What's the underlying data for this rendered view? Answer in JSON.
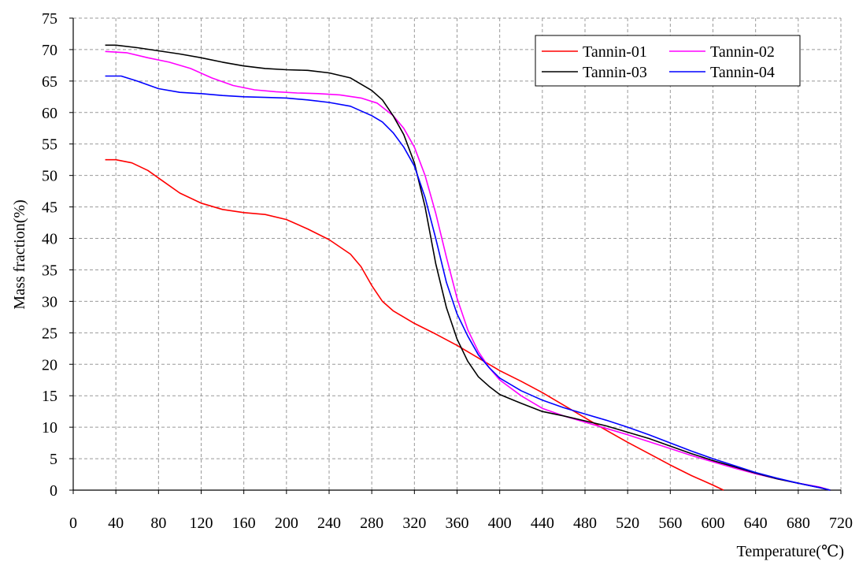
{
  "chart_data": {
    "type": "line",
    "title": "",
    "xlabel": "Temperature(℃)",
    "ylabel": "Mass fraction(%)",
    "xlim": [
      0,
      720
    ],
    "ylim": [
      0,
      75
    ],
    "xticks": [
      "0",
      "40",
      "80",
      "120",
      "160",
      "200",
      "240",
      "280",
      "320",
      "360",
      "400",
      "440",
      "480",
      "520",
      "560",
      "600",
      "640",
      "680",
      "720"
    ],
    "yticks": [
      "0",
      "5",
      "10",
      "15",
      "20",
      "25",
      "30",
      "35",
      "40",
      "45",
      "50",
      "55",
      "60",
      "65",
      "70",
      "75"
    ],
    "grid": true,
    "grid_style": "dashed",
    "legend_position": "top-right",
    "series": [
      {
        "name": "Tannin-01",
        "color": "#ff0000",
        "points": [
          [
            30,
            52.5
          ],
          [
            40,
            52.5
          ],
          [
            55,
            52
          ],
          [
            70,
            50.8
          ],
          [
            85,
            49
          ],
          [
            100,
            47.2
          ],
          [
            120,
            45.6
          ],
          [
            140,
            44.6
          ],
          [
            160,
            44.1
          ],
          [
            180,
            43.8
          ],
          [
            200,
            43
          ],
          [
            220,
            41.5
          ],
          [
            240,
            39.8
          ],
          [
            260,
            37.5
          ],
          [
            270,
            35.5
          ],
          [
            280,
            32.5
          ],
          [
            290,
            30
          ],
          [
            300,
            28.5
          ],
          [
            320,
            26.5
          ],
          [
            340,
            24.8
          ],
          [
            360,
            23
          ],
          [
            380,
            21
          ],
          [
            400,
            19
          ],
          [
            420,
            17.3
          ],
          [
            440,
            15.5
          ],
          [
            460,
            13.5
          ],
          [
            480,
            11.5
          ],
          [
            500,
            9.5
          ],
          [
            520,
            7.6
          ],
          [
            540,
            5.8
          ],
          [
            560,
            4
          ],
          [
            580,
            2.3
          ],
          [
            600,
            0.8
          ],
          [
            610,
            0
          ]
        ]
      },
      {
        "name": "Tannin-02",
        "color": "#ff00ff",
        "points": [
          [
            30,
            69.7
          ],
          [
            50,
            69.5
          ],
          [
            70,
            68.7
          ],
          [
            90,
            68
          ],
          [
            110,
            67
          ],
          [
            130,
            65.5
          ],
          [
            150,
            64.3
          ],
          [
            170,
            63.6
          ],
          [
            190,
            63.3
          ],
          [
            210,
            63.1
          ],
          [
            230,
            63
          ],
          [
            250,
            62.8
          ],
          [
            270,
            62.3
          ],
          [
            285,
            61.5
          ],
          [
            300,
            59.5
          ],
          [
            310,
            57.5
          ],
          [
            320,
            54.5
          ],
          [
            330,
            50
          ],
          [
            340,
            44
          ],
          [
            350,
            37
          ],
          [
            360,
            30.5
          ],
          [
            370,
            25.5
          ],
          [
            380,
            22
          ],
          [
            390,
            19.5
          ],
          [
            400,
            17.5
          ],
          [
            420,
            15
          ],
          [
            440,
            13
          ],
          [
            460,
            11.8
          ],
          [
            480,
            10.8
          ],
          [
            500,
            9.8
          ],
          [
            520,
            8.8
          ],
          [
            540,
            7.7
          ],
          [
            560,
            6.6
          ],
          [
            580,
            5.5
          ],
          [
            600,
            4.5
          ],
          [
            620,
            3.5
          ],
          [
            640,
            2.6
          ],
          [
            660,
            1.8
          ],
          [
            680,
            1.1
          ],
          [
            700,
            0.5
          ],
          [
            710,
            0
          ]
        ]
      },
      {
        "name": "Tannin-03",
        "color": "#000000",
        "points": [
          [
            30,
            70.7
          ],
          [
            40,
            70.7
          ],
          [
            60,
            70.3
          ],
          [
            80,
            69.8
          ],
          [
            100,
            69.3
          ],
          [
            120,
            68.7
          ],
          [
            140,
            68
          ],
          [
            160,
            67.4
          ],
          [
            180,
            67
          ],
          [
            200,
            66.8
          ],
          [
            220,
            66.7
          ],
          [
            240,
            66.3
          ],
          [
            260,
            65.5
          ],
          [
            280,
            63.5
          ],
          [
            290,
            62
          ],
          [
            300,
            59.5
          ],
          [
            310,
            56.5
          ],
          [
            320,
            52
          ],
          [
            330,
            45
          ],
          [
            340,
            36
          ],
          [
            350,
            29
          ],
          [
            360,
            24
          ],
          [
            370,
            20.5
          ],
          [
            380,
            18
          ],
          [
            390,
            16.5
          ],
          [
            400,
            15.2
          ],
          [
            420,
            13.8
          ],
          [
            440,
            12.5
          ],
          [
            460,
            11.8
          ],
          [
            480,
            11
          ],
          [
            500,
            10.2
          ],
          [
            520,
            9.2
          ],
          [
            540,
            8.2
          ],
          [
            560,
            7
          ],
          [
            580,
            5.8
          ],
          [
            600,
            4.7
          ],
          [
            620,
            3.7
          ],
          [
            640,
            2.7
          ],
          [
            660,
            1.8
          ],
          [
            680,
            1.1
          ],
          [
            700,
            0.4
          ],
          [
            710,
            0
          ]
        ]
      },
      {
        "name": "Tannin-04",
        "color": "#0000ff",
        "points": [
          [
            30,
            65.8
          ],
          [
            45,
            65.8
          ],
          [
            60,
            65
          ],
          [
            80,
            63.8
          ],
          [
            100,
            63.2
          ],
          [
            120,
            63
          ],
          [
            140,
            62.7
          ],
          [
            160,
            62.5
          ],
          [
            180,
            62.4
          ],
          [
            200,
            62.3
          ],
          [
            220,
            62
          ],
          [
            240,
            61.6
          ],
          [
            260,
            61
          ],
          [
            280,
            59.5
          ],
          [
            290,
            58.5
          ],
          [
            300,
            56.8
          ],
          [
            310,
            54.5
          ],
          [
            320,
            51.5
          ],
          [
            330,
            46.5
          ],
          [
            340,
            40
          ],
          [
            350,
            33
          ],
          [
            360,
            28
          ],
          [
            370,
            24.5
          ],
          [
            380,
            21.5
          ],
          [
            390,
            19.5
          ],
          [
            400,
            17.8
          ],
          [
            420,
            15.8
          ],
          [
            440,
            14.3
          ],
          [
            460,
            13.1
          ],
          [
            480,
            12.1
          ],
          [
            500,
            11.1
          ],
          [
            520,
            10
          ],
          [
            540,
            8.8
          ],
          [
            560,
            7.5
          ],
          [
            580,
            6.2
          ],
          [
            600,
            5
          ],
          [
            620,
            3.9
          ],
          [
            640,
            2.8
          ],
          [
            660,
            1.9
          ],
          [
            680,
            1.1
          ],
          [
            700,
            0.4
          ],
          [
            710,
            0
          ]
        ]
      }
    ]
  }
}
